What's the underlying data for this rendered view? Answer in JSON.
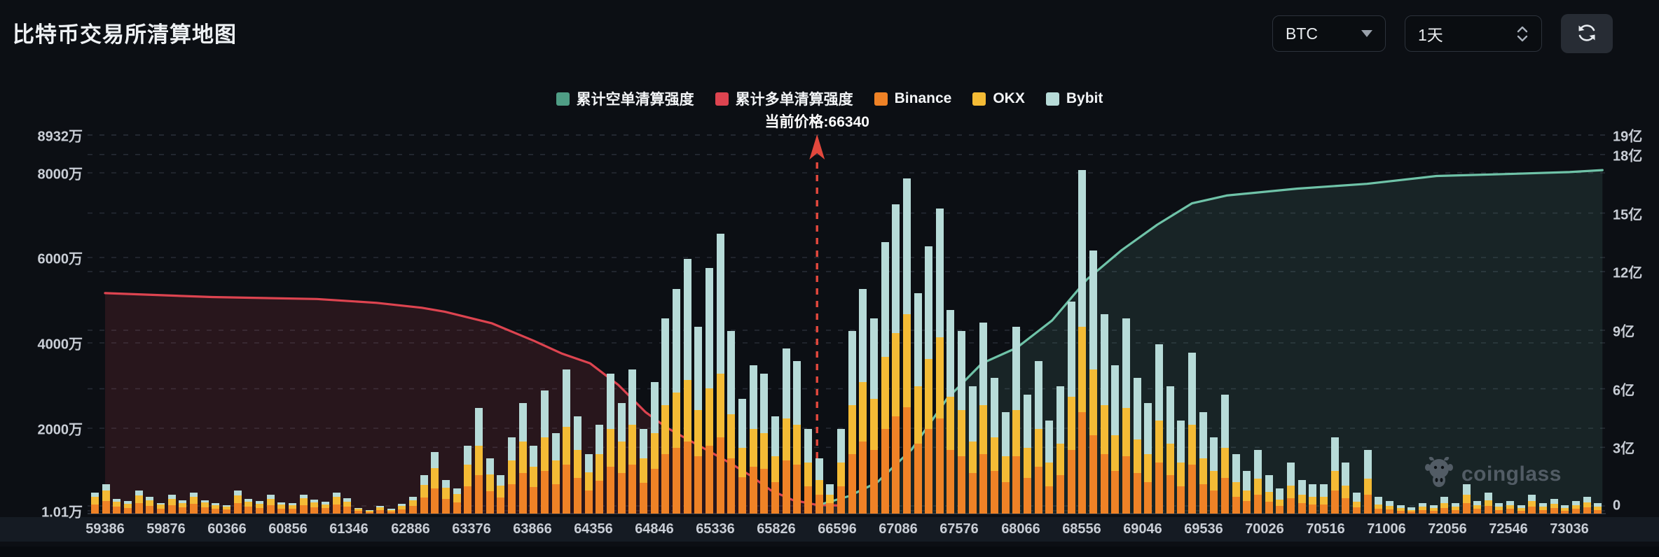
{
  "header": {
    "title": "比特币交易所清算地图",
    "symbol_select": {
      "value": "BTC"
    },
    "interval_select": {
      "value": "1天"
    }
  },
  "legend": {
    "items": [
      {
        "label": "累计空单清算强度",
        "color": "#4f9d85"
      },
      {
        "label": "累计多单清算强度",
        "color": "#dd4450"
      },
      {
        "label": "Binance",
        "color": "#ef8226"
      },
      {
        "label": "OKX",
        "color": "#f4bb35"
      },
      {
        "label": "Bybit",
        "color": "#b7dbd8"
      }
    ]
  },
  "watermark": {
    "text": "coinglass"
  },
  "chart_data": {
    "type": "bar",
    "title": "比特币交易所清算地图",
    "current_price": {
      "price": 66340,
      "label": "当前价格:66340"
    },
    "left_axis": {
      "unit": "万",
      "ticks": [
        "8932万",
        "8000万",
        "6000万",
        "4000万",
        "2000万",
        "1.01万"
      ],
      "tick_values": [
        8932,
        8000,
        6000,
        4000,
        2000,
        1.01
      ]
    },
    "right_axis": {
      "unit": "亿",
      "ticks": [
        "19亿",
        "18亿",
        "15亿",
        "12亿",
        "9亿",
        "6亿",
        "3亿",
        "0"
      ],
      "tick_values": [
        19,
        18,
        15,
        12,
        9,
        6,
        3,
        0
      ]
    },
    "x_ticks": [
      59386,
      59876,
      60366,
      60856,
      61346,
      62886,
      63376,
      63866,
      64356,
      64846,
      65336,
      65826,
      66596,
      67086,
      67576,
      68066,
      68556,
      69046,
      69536,
      70026,
      70516,
      71006,
      72056,
      72546,
      73036
    ],
    "xlabel": "价格 (USD)",
    "grid": true,
    "legend_position": "top-center",
    "bars": {
      "stack_order": [
        "Binance",
        "OKX",
        "Bybit"
      ],
      "colors": {
        "Binance": "#ef8226",
        "OKX": "#f4bb35",
        "Bybit": "#b7dbd8"
      },
      "unit": "万",
      "values": [
        [
          220,
          180,
          100
        ],
        [
          300,
          250,
          150
        ],
        [
          160,
          120,
          70
        ],
        [
          130,
          100,
          70
        ],
        [
          240,
          190,
          120
        ],
        [
          180,
          140,
          80
        ],
        [
          120,
          90,
          40
        ],
        [
          200,
          150,
          100
        ],
        [
          140,
          110,
          60
        ],
        [
          230,
          170,
          100
        ],
        [
          150,
          110,
          60
        ],
        [
          110,
          80,
          50
        ],
        [
          90,
          70,
          40
        ],
        [
          250,
          180,
          120
        ],
        [
          160,
          120,
          70
        ],
        [
          130,
          100,
          70
        ],
        [
          200,
          150,
          100
        ],
        [
          120,
          90,
          50
        ],
        [
          110,
          80,
          60
        ],
        [
          200,
          160,
          90
        ],
        [
          150,
          110,
          70
        ],
        [
          130,
          90,
          60
        ],
        [
          220,
          170,
          110
        ],
        [
          160,
          120,
          80
        ],
        [
          60,
          50,
          30
        ],
        [
          40,
          30,
          20
        ],
        [
          80,
          60,
          40
        ],
        [
          50,
          40,
          30
        ],
        [
          100,
          80,
          50
        ],
        [
          180,
          130,
          90
        ],
        [
          380,
          300,
          220
        ],
        [
          600,
          480,
          370
        ],
        [
          340,
          270,
          190
        ],
        [
          260,
          200,
          140
        ],
        [
          650,
          500,
          450
        ],
        [
          900,
          700,
          900
        ],
        [
          520,
          400,
          380
        ],
        [
          380,
          280,
          240
        ],
        [
          700,
          550,
          550
        ],
        [
          950,
          750,
          900
        ],
        [
          620,
          480,
          500
        ],
        [
          1000,
          800,
          1100
        ],
        [
          700,
          550,
          650
        ],
        [
          1150,
          900,
          1350
        ],
        [
          850,
          650,
          800
        ],
        [
          550,
          420,
          430
        ],
        [
          780,
          620,
          700
        ],
        [
          1100,
          900,
          1300
        ],
        [
          950,
          750,
          900
        ],
        [
          1150,
          950,
          1300
        ],
        [
          720,
          580,
          700
        ],
        [
          1050,
          850,
          1200
        ],
        [
          1400,
          1150,
          2050
        ],
        [
          1550,
          1300,
          2450
        ],
        [
          1700,
          1450,
          2850
        ],
        [
          1350,
          1100,
          1950
        ],
        [
          1600,
          1350,
          2850
        ],
        [
          1800,
          1500,
          3300
        ],
        [
          1300,
          1050,
          1950
        ],
        [
          850,
          700,
          1150
        ],
        [
          1100,
          900,
          1500
        ],
        [
          1050,
          850,
          1400
        ],
        [
          750,
          600,
          950
        ],
        [
          1250,
          1000,
          1650
        ],
        [
          1150,
          950,
          1500
        ],
        [
          650,
          550,
          800
        ],
        [
          450,
          350,
          500
        ],
        [
          250,
          200,
          250
        ],
        [
          650,
          550,
          800
        ],
        [
          1400,
          1150,
          1750
        ],
        [
          1700,
          1400,
          2200
        ],
        [
          1500,
          1200,
          1900
        ],
        [
          2000,
          1700,
          2700
        ],
        [
          2300,
          1950,
          3050
        ],
        [
          2500,
          2200,
          3200
        ],
        [
          1650,
          1350,
          2200
        ],
        [
          2000,
          1650,
          2650
        ],
        [
          2250,
          1900,
          3050
        ],
        [
          1500,
          1250,
          2050
        ],
        [
          1350,
          1100,
          1850
        ],
        [
          950,
          750,
          1300
        ],
        [
          1400,
          1150,
          1950
        ],
        [
          1000,
          800,
          1400
        ],
        [
          750,
          600,
          1050
        ],
        [
          1350,
          1100,
          1950
        ],
        [
          850,
          700,
          1250
        ],
        [
          1100,
          900,
          1600
        ],
        [
          650,
          550,
          1000
        ],
        [
          900,
          750,
          1350
        ],
        [
          1500,
          1250,
          2250
        ],
        [
          2400,
          2000,
          3700
        ],
        [
          1850,
          1550,
          2800
        ],
        [
          1400,
          1150,
          2150
        ],
        [
          1000,
          850,
          1650
        ],
        [
          1350,
          1150,
          2100
        ],
        [
          950,
          800,
          1450
        ],
        [
          750,
          650,
          1200
        ],
        [
          1200,
          1000,
          1800
        ],
        [
          900,
          750,
          1350
        ],
        [
          650,
          550,
          1000
        ],
        [
          1150,
          950,
          1700
        ],
        [
          700,
          600,
          1100
        ],
        [
          550,
          450,
          800
        ],
        [
          850,
          700,
          1250
        ],
        [
          400,
          350,
          650
        ],
        [
          300,
          250,
          450
        ],
        [
          450,
          380,
          670
        ],
        [
          280,
          230,
          390
        ],
        [
          180,
          150,
          270
        ],
        [
          360,
          300,
          540
        ],
        [
          240,
          200,
          360
        ],
        [
          210,
          180,
          310
        ],
        [
          210,
          180,
          310
        ],
        [
          550,
          450,
          800
        ],
        [
          360,
          300,
          540
        ],
        [
          150,
          130,
          220
        ],
        [
          450,
          380,
          670
        ],
        [
          120,
          100,
          180
        ],
        [
          100,
          80,
          120
        ],
        [
          70,
          60,
          70
        ],
        [
          50,
          40,
          60
        ],
        [
          90,
          70,
          90
        ],
        [
          70,
          60,
          70
        ],
        [
          140,
          110,
          150
        ],
        [
          90,
          70,
          90
        ],
        [
          250,
          200,
          250
        ],
        [
          110,
          90,
          100
        ],
        [
          180,
          140,
          180
        ],
        [
          90,
          70,
          90
        ],
        [
          110,
          90,
          100
        ],
        [
          70,
          60,
          70
        ],
        [
          160,
          130,
          160
        ],
        [
          90,
          70,
          90
        ],
        [
          130,
          100,
          120
        ],
        [
          70,
          60,
          70
        ],
        [
          110,
          90,
          100
        ],
        [
          150,
          120,
          130
        ],
        [
          90,
          70,
          90
        ]
      ]
    },
    "lines": {
      "cum_long": {
        "name": "累计多单清算强度",
        "unit": "亿",
        "color": "#dd4450",
        "points": [
          [
            59386,
            10.9
          ],
          [
            60245,
            10.7
          ],
          [
            61086,
            10.6
          ],
          [
            62039,
            10.4
          ],
          [
            62979,
            10.15
          ],
          [
            63163,
            9.95
          ],
          [
            63543,
            9.35
          ],
          [
            63881,
            8.45
          ],
          [
            64106,
            7.8
          ],
          [
            64331,
            7.3
          ],
          [
            64557,
            6.2
          ],
          [
            64777,
            4.8
          ],
          [
            64949,
            4.0
          ],
          [
            65116,
            3.4
          ],
          [
            65287,
            2.8
          ],
          [
            65454,
            2.2
          ],
          [
            65620,
            1.55
          ],
          [
            65782,
            0.8
          ],
          [
            66034,
            0.3
          ],
          [
            66340,
            0.05
          ],
          [
            66596,
            0.02
          ]
        ]
      },
      "cum_short": {
        "name": "累计空单清算强度",
        "unit": "亿",
        "color": "#6fc3a8",
        "points": [
          [
            66340,
            0.02
          ],
          [
            66689,
            0.5
          ],
          [
            66915,
            1.2
          ],
          [
            67194,
            2.9
          ],
          [
            67478,
            5.5
          ],
          [
            67757,
            7.3
          ],
          [
            68037,
            8.1
          ],
          [
            68321,
            9.5
          ],
          [
            68600,
            11.6
          ],
          [
            68879,
            13.1
          ],
          [
            69164,
            14.4
          ],
          [
            69443,
            15.5
          ],
          [
            69722,
            15.9
          ],
          [
            70286,
            16.25
          ],
          [
            70849,
            16.5
          ],
          [
            71867,
            16.9
          ],
          [
            72531,
            17.0
          ],
          [
            73036,
            17.1
          ],
          [
            73300,
            17.2
          ]
        ]
      }
    }
  }
}
